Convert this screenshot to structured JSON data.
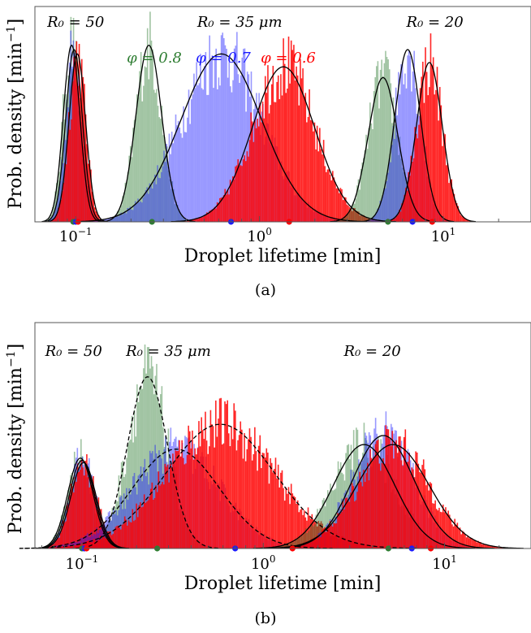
{
  "figure": {
    "captions": [
      "(a)",
      "(b)"
    ]
  },
  "colors": {
    "phi_0.8": "#2e7d32",
    "phi_0.7": "#1a1aff",
    "phi_0.6": "#ff0000",
    "overlap": "#5a1a8a",
    "fit": "#000000",
    "frame": "#555555"
  },
  "chart_data": [
    {
      "panel": "a",
      "type": "histogram",
      "xlabel": "Droplet lifetime [min]",
      "ylabel": "Prob. density [min^-1]",
      "ylabel_main": "Prob. density [min",
      "ylabel_sup": "−1",
      "ylabel_end": "]",
      "xscale": "log",
      "xlim": [
        0.06,
        30
      ],
      "ylim": [
        0,
        1.0
      ],
      "xticks": [
        {
          "value": 0.1,
          "base": "10",
          "exp": "−1"
        },
        {
          "value": 1,
          "base": "10",
          "exp": "0"
        },
        {
          "value": 10,
          "base": "10",
          "exp": "1"
        }
      ],
      "radius_labels": [
        {
          "text": "R₀ = 50",
          "x": 0.1
        },
        {
          "text": "R₀ = 35 μm",
          "x": 0.78
        },
        {
          "text": "R₀ = 20",
          "x": 9.0
        }
      ],
      "legend": [
        {
          "name": "φ = 0.8",
          "color": "#2e7d32"
        },
        {
          "name": "φ = 0.7",
          "color": "#1a1aff"
        },
        {
          "name": "φ = 0.6",
          "color": "#ff0000"
        }
      ],
      "series": [
        {
          "name": "φ = 0.8",
          "radius": "50",
          "peak_x": 0.095,
          "peak_y": 0.82,
          "width": 0.045,
          "fit": "solid",
          "mean_marker": 0.097
        },
        {
          "name": "φ = 0.7",
          "radius": "50",
          "peak_x": 0.098,
          "peak_y": 0.8,
          "width": 0.045,
          "fit": "solid",
          "mean_marker": 0.1
        },
        {
          "name": "φ = 0.6",
          "radius": "50",
          "peak_x": 0.102,
          "peak_y": 0.78,
          "width": 0.045,
          "fit": "solid",
          "mean_marker": 0.103
        },
        {
          "name": "φ = 0.8",
          "radius": "35 μm",
          "peak_x": 0.25,
          "peak_y": 0.82,
          "width": 0.07,
          "fit": "solid",
          "mean_marker": 0.26
        },
        {
          "name": "φ = 0.7",
          "radius": "35 μm",
          "peak_x": 0.62,
          "peak_y": 0.78,
          "width": 0.22,
          "fit": "solid",
          "mean_marker": 0.7
        },
        {
          "name": "φ = 0.6",
          "radius": "35 μm",
          "peak_x": 1.35,
          "peak_y": 0.72,
          "width": 0.17,
          "fit": "solid",
          "mean_marker": 1.45
        },
        {
          "name": "φ = 0.8",
          "radius": "20",
          "peak_x": 4.7,
          "peak_y": 0.67,
          "width": 0.08,
          "fit": "solid",
          "mean_marker": 5.0
        },
        {
          "name": "φ = 0.7",
          "radius": "20",
          "peak_x": 6.4,
          "peak_y": 0.8,
          "width": 0.07,
          "fit": "solid",
          "mean_marker": 6.8
        },
        {
          "name": "φ = 0.6",
          "radius": "20",
          "peak_x": 8.4,
          "peak_y": 0.74,
          "width": 0.07,
          "fit": "solid",
          "mean_marker": 8.7
        }
      ]
    },
    {
      "panel": "b",
      "type": "histogram",
      "xlabel": "Droplet lifetime [min]",
      "ylabel": "Prob. density [min^-1]",
      "ylabel_main": "Prob. density [min",
      "ylabel_sup": "−1",
      "ylabel_end": "]",
      "xscale": "log",
      "xlim": [
        0.055,
        30
      ],
      "ylim": [
        0,
        1.0
      ],
      "xticks": [
        {
          "value": 0.1,
          "base": "10",
          "exp": "−1"
        },
        {
          "value": 1,
          "base": "10",
          "exp": "0"
        },
        {
          "value": 10,
          "base": "10",
          "exp": "1"
        }
      ],
      "radius_labels": [
        {
          "text": "R₀ = 50",
          "x": 0.09
        },
        {
          "text": "R₀ = 35 μm",
          "x": 0.3
        },
        {
          "text": "R₀ = 20",
          "x": 4.0
        }
      ],
      "series": [
        {
          "name": "φ = 0.8",
          "radius": "50",
          "peak_x": 0.098,
          "peak_y": 0.4,
          "width": 0.07,
          "fit": "solid",
          "mean_marker": 0.1
        },
        {
          "name": "φ = 0.7",
          "radius": "50",
          "peak_x": 0.1,
          "peak_y": 0.39,
          "width": 0.07,
          "fit": "solid",
          "mean_marker": 0.103
        },
        {
          "name": "φ = 0.6",
          "radius": "50",
          "peak_x": 0.102,
          "peak_y": 0.38,
          "width": 0.07,
          "fit": "solid",
          "mean_marker": 0.106
        },
        {
          "name": "φ = 0.8",
          "radius": "35 μm",
          "peak_x": 0.23,
          "peak_y": 0.76,
          "width": 0.11,
          "fit": "dashed",
          "mean_marker": 0.26
        },
        {
          "name": "φ = 0.7",
          "radius": "35 μm",
          "peak_x": 0.33,
          "peak_y": 0.44,
          "width": 0.24,
          "fit": "dashed",
          "mean_marker": 0.7
        },
        {
          "name": "φ = 0.6",
          "radius": "35 μm",
          "peak_x": 0.58,
          "peak_y": 0.55,
          "width": 0.3,
          "fit": "dashed",
          "mean_marker": 1.45
        },
        {
          "name": "φ = 0.8",
          "radius": "20",
          "peak_x": 3.6,
          "peak_y": 0.46,
          "width": 0.17,
          "fit": "solid",
          "mean_marker": 4.9
        },
        {
          "name": "φ = 0.7",
          "radius": "20",
          "peak_x": 4.6,
          "peak_y": 0.5,
          "width": 0.17,
          "fit": "solid",
          "mean_marker": 6.6
        },
        {
          "name": "φ = 0.6",
          "radius": "20",
          "peak_x": 5.2,
          "peak_y": 0.46,
          "width": 0.2,
          "fit": "solid",
          "mean_marker": 8.4
        }
      ]
    }
  ]
}
